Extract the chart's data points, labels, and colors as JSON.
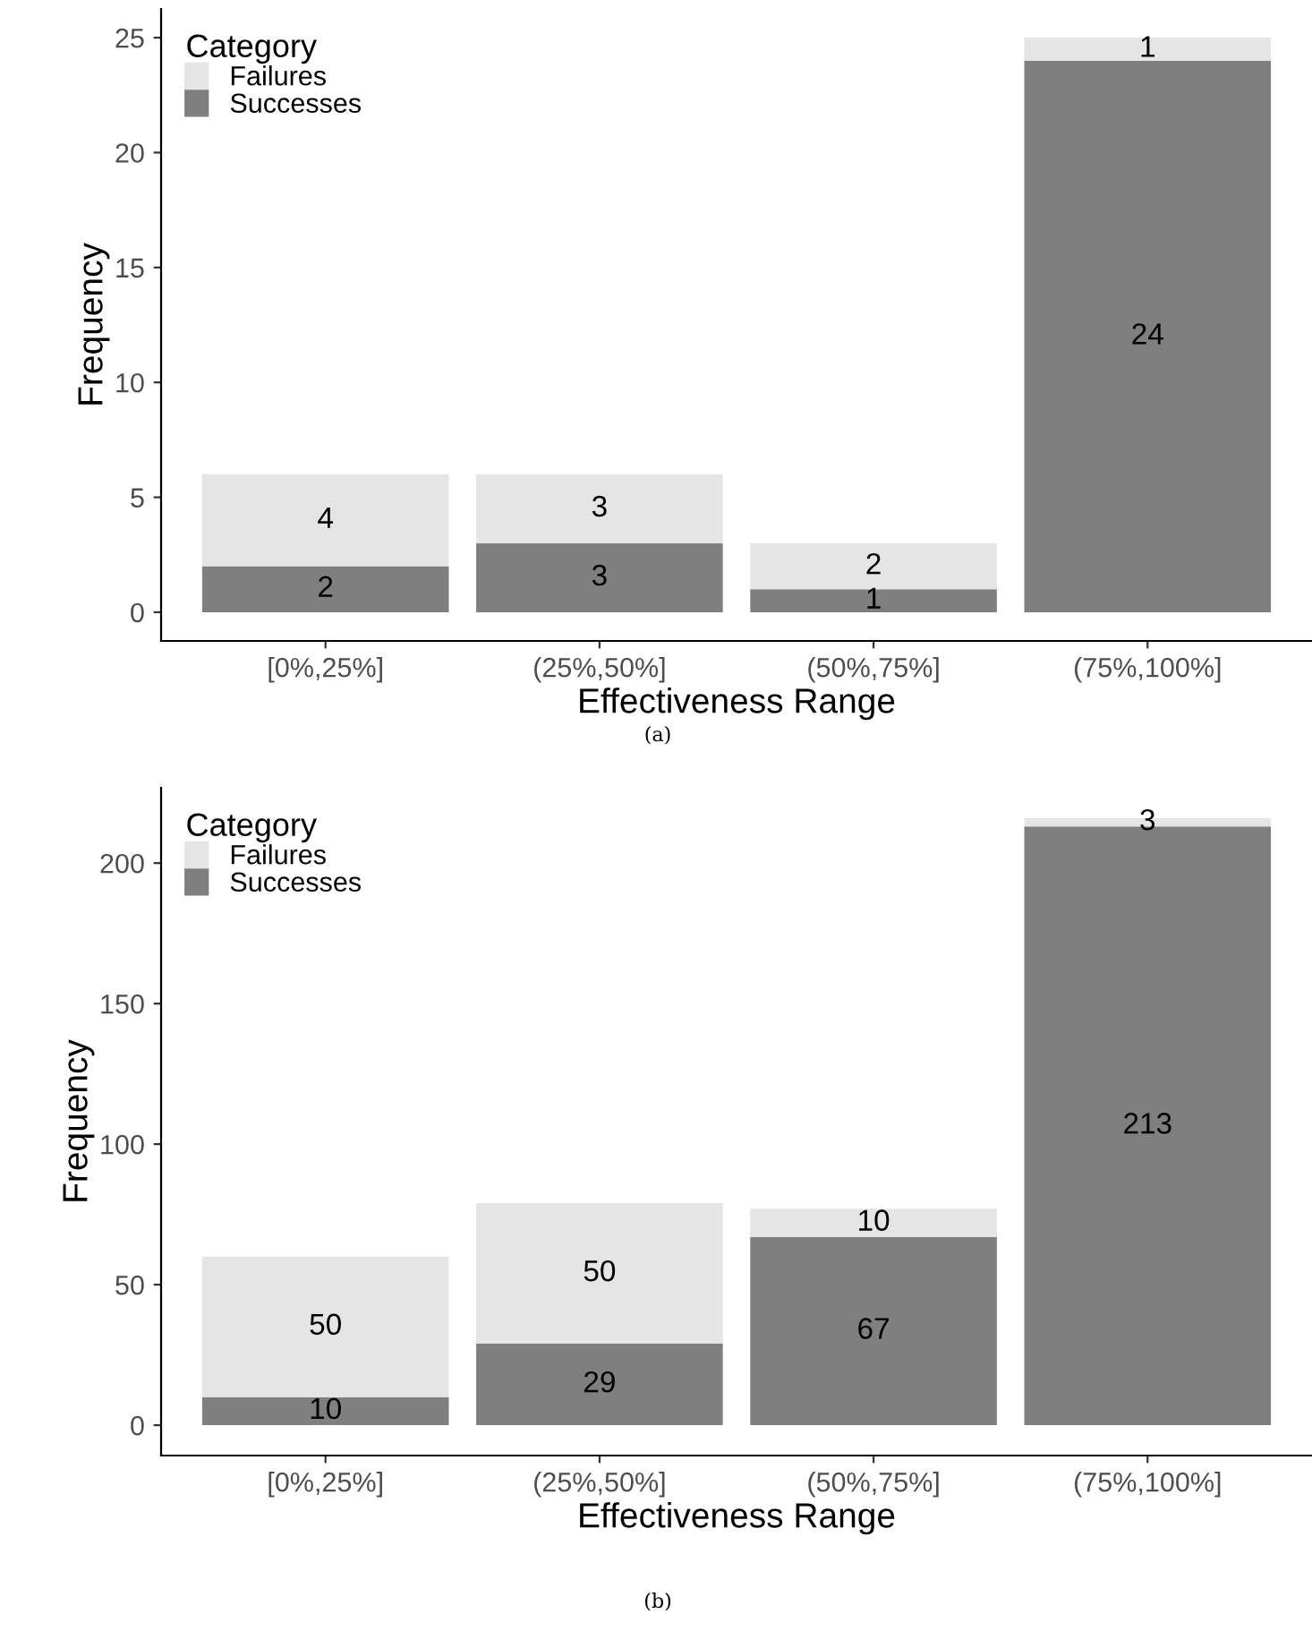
{
  "chart_data": [
    {
      "type": "bar",
      "stacked": true,
      "xlabel": "Effectiveness Range",
      "ylabel": "Frequency",
      "legend_title": "Category",
      "legend": "top left",
      "grid": false,
      "data_labels": true,
      "categories": [
        "[0%,25%]",
        "(25%,50%]",
        "(50%,75%]",
        "(75%,100%]"
      ],
      "series": [
        {
          "name": "Successes",
          "color": "#7f7f7f",
          "values": [
            2,
            3,
            1,
            24
          ]
        },
        {
          "name": "Failures",
          "color": "#e5e5e5",
          "values": [
            4,
            3,
            2,
            1
          ]
        }
      ],
      "ylim": [
        -1.25,
        26.25
      ],
      "yticks": [
        0,
        5,
        10,
        15,
        20,
        25
      ],
      "annotations": [
        "(a)"
      ]
    },
    {
      "type": "bar",
      "stacked": true,
      "xlabel": "Effectiveness Range",
      "ylabel": "Frequency",
      "legend_title": "Category",
      "legend": "top left",
      "grid": false,
      "data_labels": true,
      "categories": [
        "[0%,25%]",
        "(25%,50%]",
        "(50%,75%]",
        "(75%,100%]"
      ],
      "series": [
        {
          "name": "Successes",
          "color": "#7f7f7f",
          "values": [
            10,
            29,
            67,
            213
          ]
        },
        {
          "name": "Failures",
          "color": "#e5e5e5",
          "values": [
            50,
            50,
            10,
            3
          ]
        }
      ],
      "ylim": [
        -10.8,
        226.8
      ],
      "yticks": [
        0,
        50,
        100,
        150,
        200
      ],
      "annotations": [
        "(b)"
      ]
    }
  ]
}
